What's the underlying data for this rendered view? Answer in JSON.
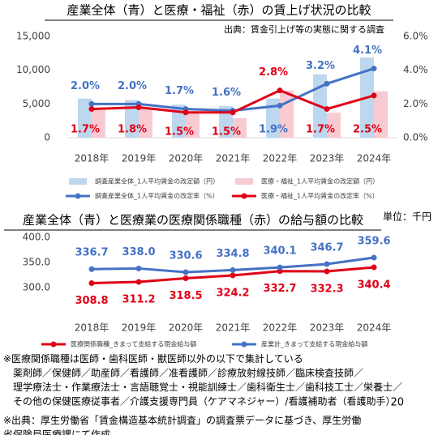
{
  "chart_data": [
    {
      "type": "bar",
      "title": "産業全体（青）と医療・福祉（赤）の賃上げ状況の比較",
      "subtitle": "出典：賃金引上げ等の実態に関する調査",
      "categories": [
        "2018年",
        "2019年",
        "2020年",
        "2021年",
        "2022年",
        "2023年",
        "2024年"
      ],
      "ylim": [
        0,
        15000
      ],
      "yticks": [
        0,
        {
          "value": 5000,
          "label": "5,000"
        },
        {
          "value": 10000,
          "label": "10,000"
        },
        {
          "value": 15000,
          "label": "15,000"
        }
      ],
      "y2lim": [
        0,
        6
      ],
      "y2ticks": [
        {
          "value": 0,
          "label": "0.0%"
        },
        {
          "value": 2,
          "label": "2.0%"
        },
        {
          "value": 4,
          "label": "4.0%"
        },
        {
          "value": 6,
          "label": "6.0%"
        }
      ],
      "series": [
        {
          "name": "調査産業全体_1人平均賃金の改定額（円）",
          "type": "bar",
          "color": "#bdd7ee",
          "values": [
            5800,
            5600,
            4900,
            4700,
            5800,
            9400,
            11900
          ]
        },
        {
          "name": "医療・福祉_1人平均賃金の改定額（円）",
          "type": "bar",
          "color": "#f8cbd3",
          "values": [
            4100,
            4300,
            3600,
            2900,
            7000,
            3700,
            6900
          ]
        },
        {
          "name": "調査産業全体_1人平均賃金の改定率（%）",
          "type": "line",
          "axis": "y2",
          "color": "#4472c4",
          "values": [
            2.0,
            2.0,
            1.7,
            1.6,
            1.9,
            3.2,
            4.1
          ],
          "value_labels": [
            "2.0%",
            "2.0%",
            "1.7%",
            "1.6%",
            "1.9%",
            "3.2%",
            "4.1%"
          ]
        },
        {
          "name": "医療・福祉_1人平均賃金の改定率（%）",
          "type": "line",
          "axis": "y2",
          "color": "#e00016",
          "values": [
            1.7,
            1.8,
            1.5,
            1.5,
            2.8,
            1.7,
            2.5
          ],
          "value_labels": [
            "1.7%",
            "1.8%",
            "1.5%",
            "1.5%",
            "2.8%",
            "1.7%",
            "2.5%"
          ]
        }
      ]
    },
    {
      "type": "line",
      "title": "産業全体（青）と医療業の医療関係職種（赤）の給与額の比較",
      "subtitle": "単位：千円",
      "categories": [
        "2018年",
        "2019年",
        "2020年",
        "2021年",
        "2022年",
        "2023年",
        "2024年"
      ],
      "ylim": [
        300,
        400
      ],
      "yticks": [
        {
          "value": 300,
          "label": "300.0"
        },
        {
          "value": 350,
          "label": "350.0"
        },
        {
          "value": 400,
          "label": "400.0"
        }
      ],
      "series": [
        {
          "name": "医療関係職種_きまって支給する現金給与額",
          "type": "line",
          "color": "#e00016",
          "values": [
            308.8,
            311.2,
            318.5,
            324.2,
            332.7,
            332.3,
            340.4
          ],
          "value_labels": [
            "308.8",
            "311.2",
            "318.5",
            "324.2",
            "332.7",
            "332.3",
            "340.4"
          ]
        },
        {
          "name": "産業計_きまって支給する現金給与額",
          "type": "line",
          "color": "#4472c4",
          "values": [
            336.7,
            338.0,
            330.6,
            334.8,
            340.1,
            346.7,
            359.6
          ],
          "value_labels": [
            "336.7",
            "338.0",
            "330.6",
            "334.8",
            "340.1",
            "346.7",
            "359.6"
          ]
        }
      ]
    }
  ],
  "notes": [
    "※医療関係職種は医師・歯科医師・獣医師以外の以下で集計している",
    "薬剤師／保健師／助産師／看護師／准看護師／診療放射線技師／臨床検査技師／",
    "理学療法士・作業療法士・言語聴覚士・視能訓練士／歯科衛生士／歯科技工士／栄養士／",
    "その他の保健医療従事者／介護支援専門員（ケアマネジャー）/看護補助者（看護助手）",
    "※出典：厚生労働省「賃金構造基本統計調査」の調査票データに基づき、厚生労働",
    "省保険局医療課にて作成"
  ],
  "page_number": "20"
}
